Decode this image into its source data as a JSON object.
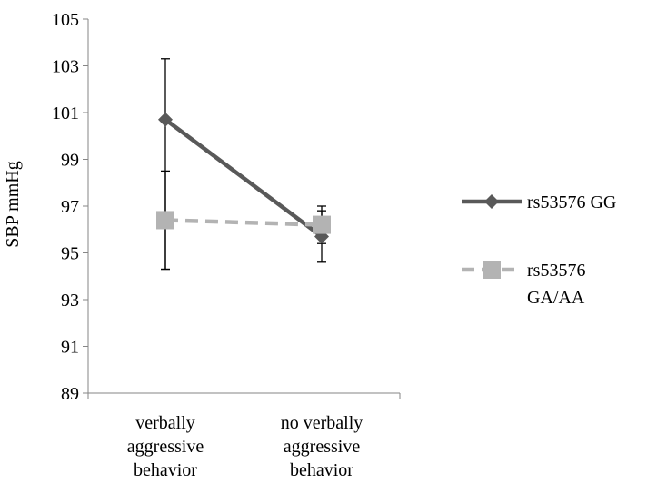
{
  "chart_data": {
    "type": "line",
    "title": "",
    "xlabel": "",
    "ylabel": "SBP mmHg",
    "ylim": [
      89,
      105
    ],
    "yticks": [
      "89",
      "91",
      "93",
      "95",
      "97",
      "99",
      "101",
      "103",
      "105"
    ],
    "categories": [
      [
        "verbally",
        "aggressive",
        "behavior"
      ],
      [
        "no verbally",
        "aggressive",
        "behavior"
      ]
    ],
    "series": [
      {
        "name_lines": [
          "rs53576  GG"
        ],
        "values": [
          100.7,
          95.7
        ],
        "error_low": [
          94.3,
          94.6
        ],
        "error_high": [
          103.3,
          96.8
        ],
        "color": "#595959",
        "line_style": "solid",
        "marker": "diamond"
      },
      {
        "name_lines": [
          "rs53576",
          "GA/AA"
        ],
        "values": [
          96.4,
          96.2
        ],
        "error_low": [
          94.3,
          95.4
        ],
        "error_high": [
          98.5,
          97.0
        ],
        "color": "#b3b3b3",
        "line_style": "dashed",
        "marker": "square"
      }
    ],
    "grid": false,
    "legend_position": "right"
  }
}
